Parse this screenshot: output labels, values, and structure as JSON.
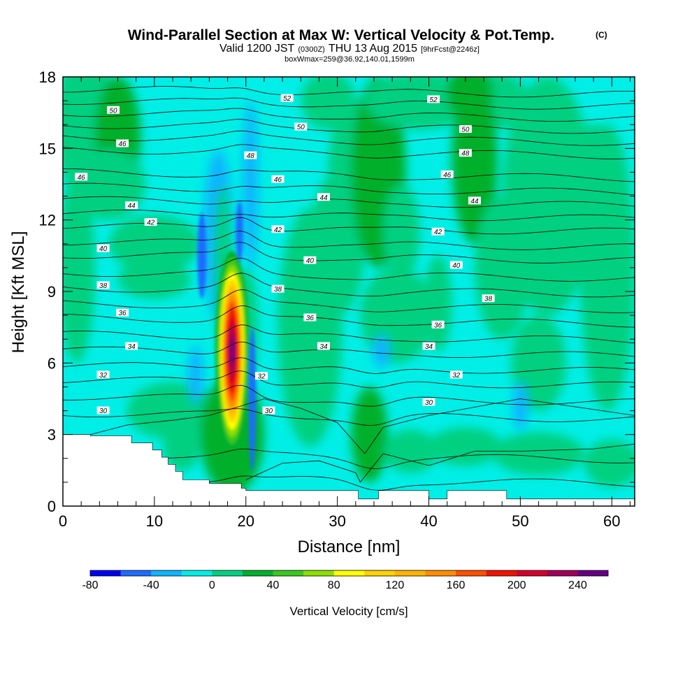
{
  "header": {
    "title": "Wind-Parallel Section at Max W: Vertical Velocity & Pot.Temp.",
    "copyright": "(C)",
    "valid_prefix": "Valid 1200 JST",
    "valid_utc": "(0300Z)",
    "valid_date": "THU 13 Aug 2015",
    "forecast": "[9hrFcst@2246z]",
    "boxwmax": "boxWmax=259@36.92,140.01,1599m"
  },
  "chart_data": {
    "type": "heatmap",
    "title": "Wind-Parallel Section at Max W: Vertical Velocity & Pot.Temp.",
    "xlabel": "Distance [nm]",
    "ylabel": "Height [Kft MSL]",
    "xlim": [
      0,
      62.5
    ],
    "ylim": [
      0,
      18
    ],
    "x_ticks": [
      0,
      10,
      20,
      30,
      40,
      50,
      60
    ],
    "y_ticks": [
      0,
      3,
      6,
      9,
      12,
      15,
      18
    ],
    "colorbar": {
      "label": "Vertical Velocity [cm/s]",
      "range": [
        -80,
        260
      ],
      "step": 20,
      "tick_values": [
        -80,
        -40,
        0,
        40,
        80,
        120,
        160,
        200,
        240
      ],
      "colors": [
        "#0000f0",
        "#1c6cff",
        "#10b4ff",
        "#00eee6",
        "#00d080",
        "#00b02c",
        "#3ac81e",
        "#8cde00",
        "#ffff00",
        "#ffd200",
        "#ffb400",
        "#ff8c00",
        "#ff5000",
        "#f01400",
        "#d2002c",
        "#a0005a",
        "#640082"
      ]
    },
    "terrain": [
      [
        0,
        3
      ],
      [
        3,
        3
      ],
      [
        3,
        2.95
      ],
      [
        7.5,
        2.95
      ],
      [
        7.5,
        2.65
      ],
      [
        9.8,
        2.65
      ],
      [
        9.8,
        2.35
      ],
      [
        10.8,
        2.35
      ],
      [
        10.8,
        2.05
      ],
      [
        11.5,
        2.05
      ],
      [
        11.5,
        1.75
      ],
      [
        12.3,
        1.75
      ],
      [
        12.3,
        1.45
      ],
      [
        13.1,
        1.45
      ],
      [
        13.1,
        1.1
      ],
      [
        16,
        1.1
      ],
      [
        16,
        0.95
      ],
      [
        19.5,
        0.95
      ],
      [
        19.5,
        0.75
      ],
      [
        20,
        0.75
      ],
      [
        20,
        0.65
      ],
      [
        32.3,
        0.65
      ],
      [
        32.3,
        0.3
      ],
      [
        34.5,
        0.3
      ],
      [
        34.5,
        0.65
      ],
      [
        40,
        0.65
      ],
      [
        40,
        0.3
      ],
      [
        42,
        0.3
      ],
      [
        42,
        0.65
      ],
      [
        48.5,
        0.65
      ],
      [
        48.5,
        0.3
      ],
      [
        62.5,
        0.3
      ],
      [
        62.5,
        0
      ]
    ],
    "updraft_core": {
      "x": 18.5,
      "height": 6.5,
      "max_w": 259
    },
    "theta_contours": [
      {
        "label": "30",
        "labels": [
          {
            "x": 4.4,
            "y": 4.0
          },
          {
            "x": 22.5,
            "y": 4.0
          },
          {
            "x": 40,
            "y": 4.35
          }
        ]
      },
      {
        "label": "32",
        "labels": [
          {
            "x": 4.4,
            "y": 5.5
          },
          {
            "x": 21.7,
            "y": 5.45
          },
          {
            "x": 43,
            "y": 5.5
          }
        ]
      },
      {
        "label": "34",
        "labels": [
          {
            "x": 7.5,
            "y": 6.7
          },
          {
            "x": 28.5,
            "y": 6.7
          },
          {
            "x": 40,
            "y": 6.7
          }
        ]
      },
      {
        "label": "36",
        "labels": [
          {
            "x": 6.5,
            "y": 8.1
          },
          {
            "x": 27,
            "y": 7.9
          },
          {
            "x": 41,
            "y": 7.6
          }
        ]
      },
      {
        "label": "38",
        "labels": [
          {
            "x": 4.4,
            "y": 9.25
          },
          {
            "x": 23.5,
            "y": 9.1
          },
          {
            "x": 46.5,
            "y": 8.7
          }
        ]
      },
      {
        "label": "40",
        "labels": [
          {
            "x": 4.4,
            "y": 10.8
          },
          {
            "x": 27,
            "y": 10.3
          },
          {
            "x": 43,
            "y": 10.1
          }
        ]
      },
      {
        "label": "42",
        "labels": [
          {
            "x": 9.6,
            "y": 11.9
          },
          {
            "x": 23.5,
            "y": 11.6
          },
          {
            "x": 41,
            "y": 11.5
          }
        ]
      },
      {
        "label": "44",
        "labels": [
          {
            "x": 7.5,
            "y": 12.6
          },
          {
            "x": 28.5,
            "y": 12.95
          },
          {
            "x": 45,
            "y": 12.8
          }
        ]
      },
      {
        "label": "46",
        "labels": [
          {
            "x": 2,
            "y": 13.8
          },
          {
            "x": 6.5,
            "y": 15.2
          },
          {
            "x": 23.5,
            "y": 13.7
          },
          {
            "x": 42,
            "y": 13.9
          }
        ]
      },
      {
        "label": "48",
        "labels": [
          {
            "x": 20.5,
            "y": 14.7
          },
          {
            "x": 44,
            "y": 14.8
          }
        ]
      },
      {
        "label": "50",
        "labels": [
          {
            "x": 5.5,
            "y": 16.6
          },
          {
            "x": 26,
            "y": 15.9
          },
          {
            "x": 44,
            "y": 15.8
          }
        ]
      },
      {
        "label": "52",
        "labels": [
          {
            "x": 24.5,
            "y": 17.1
          },
          {
            "x": 40.5,
            "y": 17.05
          }
        ]
      }
    ]
  }
}
